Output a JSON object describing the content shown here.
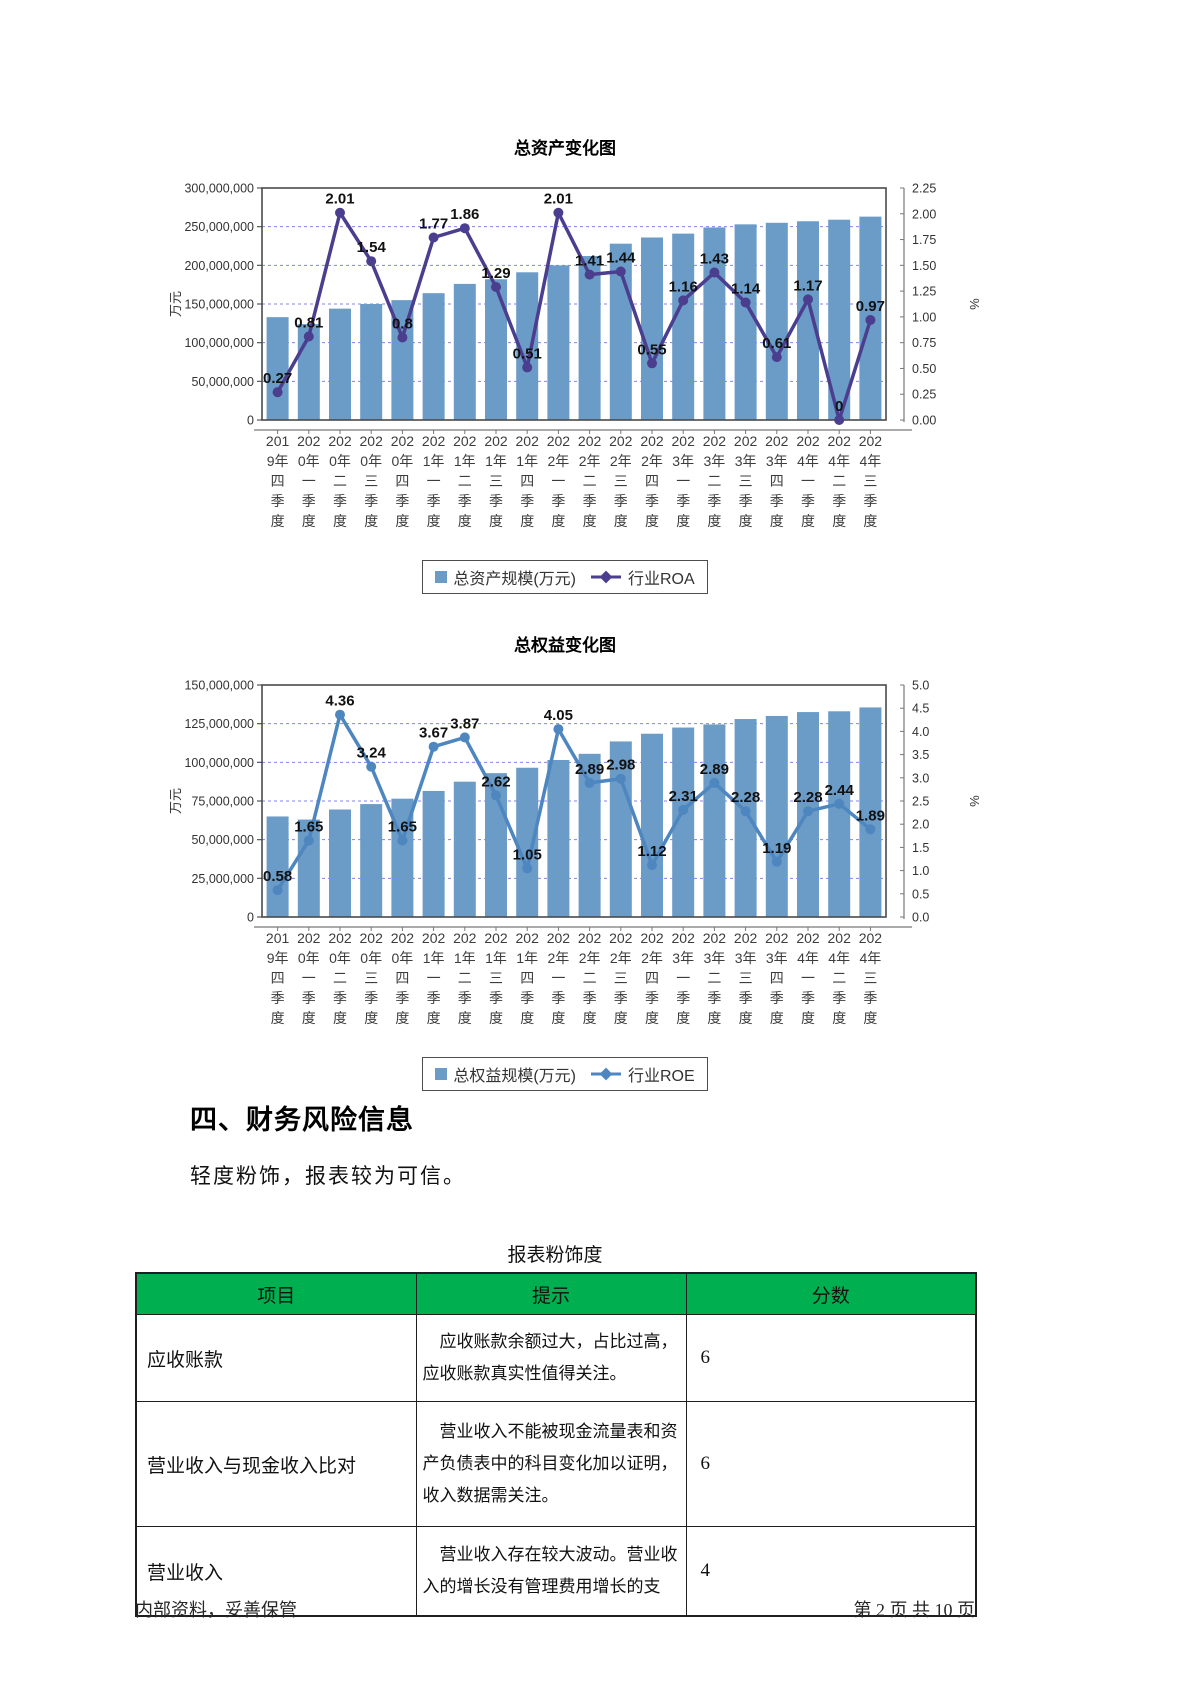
{
  "colors": {
    "bar": "#6B9BC7",
    "roa_line": "#4B3E8F",
    "roe_line": "#4E86C0",
    "grid": "#8383EA",
    "table_header_green": "#00B050"
  },
  "chart_data": [
    {
      "type": "bar+line",
      "title": "总资产变化图",
      "unit_left": "万元",
      "unit_right": "%",
      "ylim_left": [
        0,
        300000000
      ],
      "ytick_step_left": 50000000,
      "ylim_right": [
        0,
        2.25
      ],
      "ytick_step_right": 0.25,
      "grid": true,
      "legend_position": "bottom",
      "categories": [
        "2019年四季度",
        "2020年一季度",
        "2020年二季度",
        "2020年三季度",
        "2020年四季度",
        "2021年一季度",
        "2021年二季度",
        "2021年三季度",
        "2021年四季度",
        "2022年一季度",
        "2022年二季度",
        "2022年三季度",
        "2022年四季度",
        "2023年一季度",
        "2023年二季度",
        "2023年三季度",
        "2023年四季度",
        "2024年一季度",
        "2024年二季度",
        "2024年三季度"
      ],
      "series": [
        {
          "name": "总资产规模(万元)",
          "type": "bar",
          "axis": "left",
          "values": [
            133000000,
            124000000,
            144000000,
            150000000,
            155000000,
            164000000,
            176000000,
            182000000,
            191000000,
            200000000,
            212000000,
            228000000,
            236000000,
            241000000,
            249000000,
            253000000,
            255000000,
            257000000,
            259000000,
            263000000
          ]
        },
        {
          "name": "行业ROA",
          "type": "line",
          "axis": "right",
          "values": [
            0.27,
            0.81,
            2.01,
            1.54,
            0.8,
            1.77,
            1.86,
            1.29,
            0.51,
            2.01,
            1.41,
            1.44,
            0.55,
            1.16,
            1.43,
            1.14,
            0.61,
            1.17,
            0,
            0.97
          ]
        }
      ]
    },
    {
      "type": "bar+line",
      "title": "总权益变化图",
      "unit_left": "万元",
      "unit_right": "%",
      "ylim_left": [
        0,
        150000000
      ],
      "ytick_step_left": 25000000,
      "ylim_right": [
        0,
        5
      ],
      "ytick_step_right": 0.5,
      "grid": true,
      "legend_position": "bottom",
      "categories": [
        "2019年四季度",
        "2020年一季度",
        "2020年二季度",
        "2020年三季度",
        "2020年四季度",
        "2021年一季度",
        "2021年二季度",
        "2021年三季度",
        "2021年四季度",
        "2022年一季度",
        "2022年二季度",
        "2022年三季度",
        "2022年四季度",
        "2023年一季度",
        "2023年二季度",
        "2023年三季度",
        "2023年四季度",
        "2024年一季度",
        "2024年二季度",
        "2024年三季度"
      ],
      "series": [
        {
          "name": "总权益规模(万元)",
          "type": "bar",
          "axis": "left",
          "values": [
            65000000,
            63000000,
            69500000,
            73000000,
            76500000,
            81500000,
            87500000,
            93000000,
            96500000,
            101500000,
            105500000,
            113500000,
            118500000,
            122500000,
            124500000,
            128000000,
            130000000,
            132500000,
            133000000,
            135500000
          ]
        },
        {
          "name": "行业ROE",
          "type": "line",
          "axis": "right",
          "values": [
            0.58,
            1.65,
            4.36,
            3.24,
            1.65,
            3.67,
            3.87,
            2.62,
            1.05,
            4.05,
            2.89,
            2.98,
            1.12,
            2.31,
            2.89,
            2.28,
            1.19,
            2.28,
            2.44,
            1.89
          ]
        }
      ]
    }
  ],
  "section": {
    "heading": "四、财务风险信息",
    "paragraph": "轻度粉饰，报表较为可信。"
  },
  "table": {
    "caption": "报表粉饰度",
    "headers": [
      "项目",
      "提示",
      "分数"
    ],
    "rows": [
      {
        "item": "应收账款",
        "hint": "应收账款余额过大，占比过高，应收账款真实性值得关注。",
        "score": "6"
      },
      {
        "item": "营业收入与现金收入比对",
        "hint": "营业收入不能被现金流量表和资产负债表中的科目变化加以证明，收入数据需关注。",
        "score": "6"
      },
      {
        "item": "营业收入",
        "hint": "营业收入存在较大波动。营业收入的增长没有管理费用增长的支",
        "score": "4"
      }
    ]
  },
  "footer": {
    "left": "内部资料，妥善保管",
    "right": "第 2 页  共 10 页"
  }
}
